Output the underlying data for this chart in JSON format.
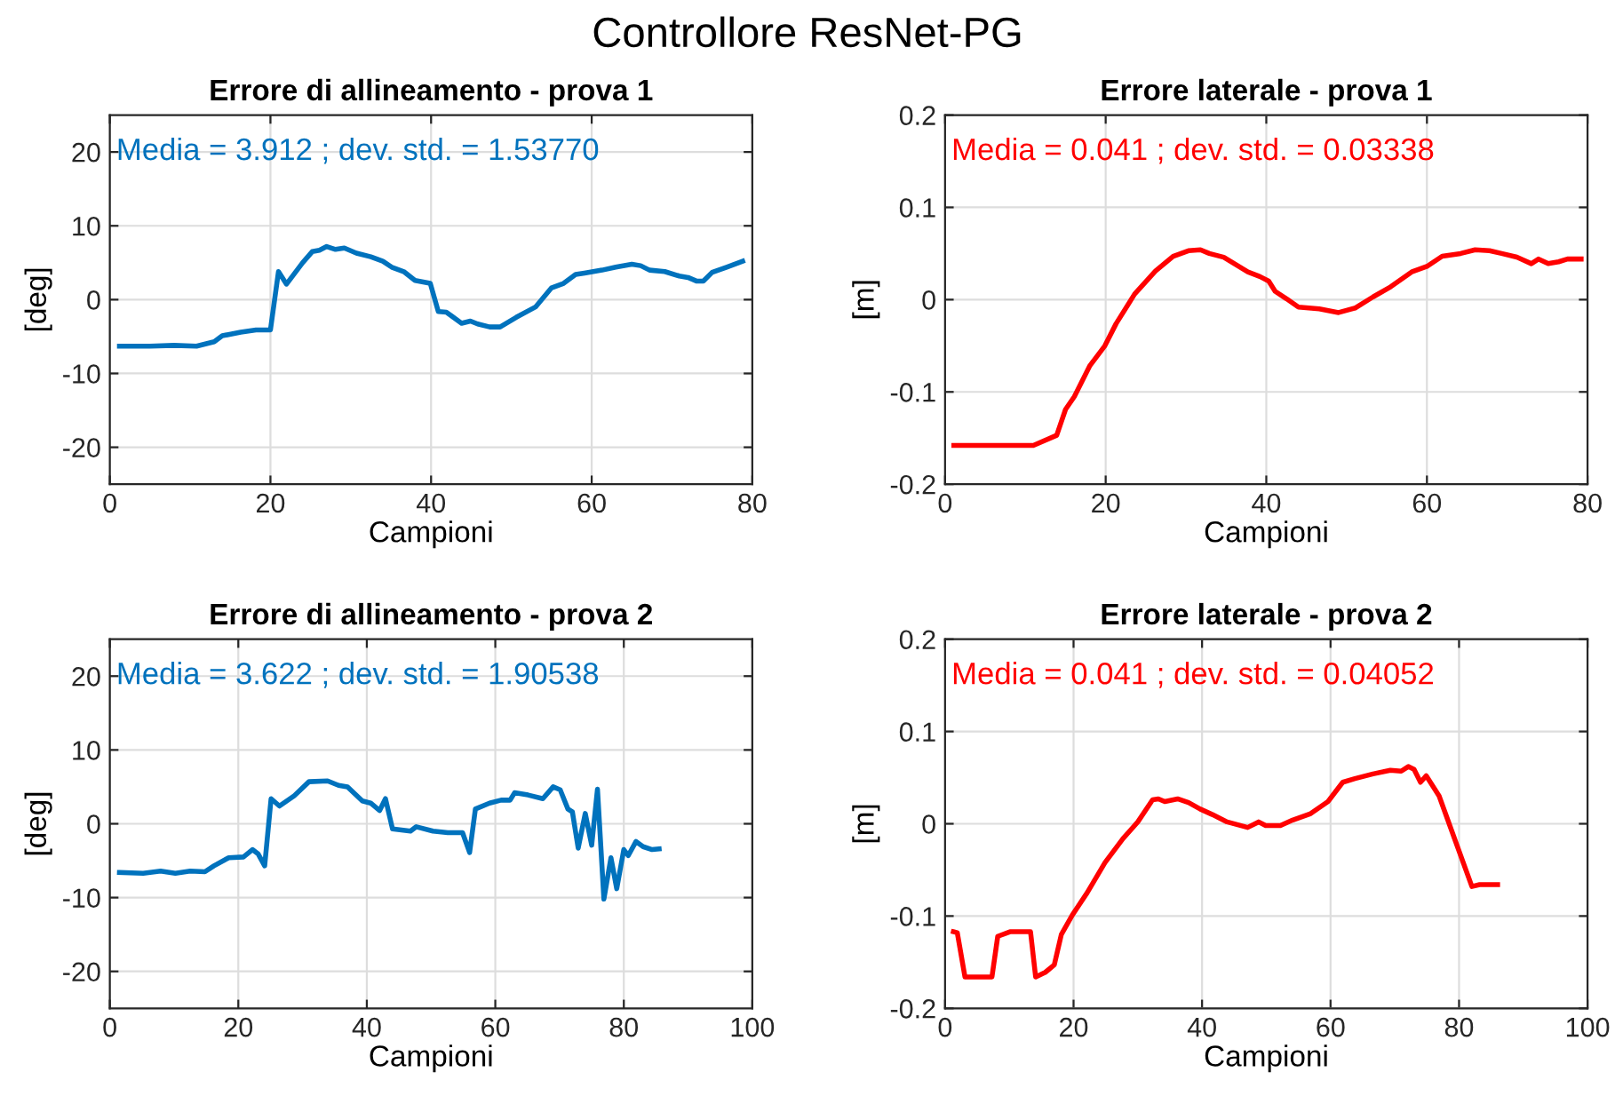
{
  "chart_data": [
    {
      "type": "line",
      "title": "Errore di allineamento - prova 1",
      "xlabel": "Campioni",
      "ylabel": "[deg]",
      "xlim": [
        0,
        80
      ],
      "xticks": [
        0,
        20,
        40,
        60,
        80
      ],
      "ylim": [
        -25,
        25
      ],
      "yticks": [
        -20,
        -10,
        0,
        10,
        20
      ],
      "grid": true,
      "annotations": [
        "Media = 3.912 ; dev. std. = 1.53770",
        "Controllore ResNet-PG"
      ],
      "series": [
        {
          "color": "#0072bd",
          "x": [
            1.2,
            5,
            8,
            10.8,
            13,
            14,
            16.3,
            18.2,
            20,
            21,
            22,
            24,
            25.2,
            26.1,
            27,
            28.1,
            29.2,
            30.7,
            32.5,
            34,
            35.1,
            36.6,
            38,
            39.9,
            40.9,
            41.9,
            43.8,
            44.9,
            45.8,
            47.3,
            48.6,
            50.6,
            53,
            55,
            56.5,
            58,
            59.1,
            61.3,
            63,
            65,
            66.1,
            67.2,
            69.1,
            70.9,
            72,
            73.1,
            73.9,
            75,
            76.8,
            78.8
          ],
          "values": [
            -6.3,
            -6.3,
            -6.2,
            -6.3,
            -5.7,
            -4.9,
            -4.4,
            -4.1,
            -4.1,
            3.8,
            2.1,
            5.0,
            6.5,
            6.7,
            7.2,
            6.8,
            7.0,
            6.3,
            5.8,
            5.2,
            4.4,
            3.8,
            2.6,
            2.2,
            -1.6,
            -1.7,
            -3.2,
            -2.9,
            -3.3,
            -3.7,
            -3.7,
            -2.4,
            -1.0,
            1.6,
            2.2,
            3.4,
            3.6,
            4.0,
            4.4,
            4.8,
            4.6,
            4.0,
            3.8,
            3.2,
            3.0,
            2.5,
            2.5,
            3.7,
            4.4,
            5.2
          ]
        }
      ]
    },
    {
      "type": "line",
      "title": "Errore laterale - prova 1",
      "xlabel": "Campioni",
      "ylabel": "[m]",
      "xlim": [
        0,
        80
      ],
      "xticks": [
        0,
        20,
        40,
        60,
        80
      ],
      "ylim": [
        -0.2,
        0.2
      ],
      "yticks": [
        -0.2,
        -0.1,
        0,
        0.1,
        0.2
      ],
      "grid": true,
      "annotations": [
        "Media = 0.041 ; dev. std. = 0.03338"
      ],
      "series": [
        {
          "color": "#ff0000",
          "x": [
            1.1,
            9.4,
            11,
            13.9,
            15,
            16.1,
            18,
            19.9,
            21.3,
            23.6,
            26.2,
            28.4,
            30.3,
            31.8,
            32.9,
            34.7,
            36.2,
            37.7,
            39.2,
            40.3,
            41.1,
            42.5,
            44,
            46.6,
            49,
            51.1,
            53.3,
            55.5,
            58.1,
            60,
            61.9,
            64.2,
            66,
            67.8,
            69.3,
            71.2,
            73,
            73.9,
            75.1,
            76.4,
            77.5,
            78.2,
            79.2
          ],
          "values": [
            -0.158,
            -0.158,
            -0.158,
            -0.147,
            -0.119,
            -0.105,
            -0.072,
            -0.05,
            -0.026,
            0.006,
            0.031,
            0.047,
            0.053,
            0.054,
            0.05,
            0.046,
            0.038,
            0.03,
            0.025,
            0.02,
            0.009,
            0.001,
            -0.008,
            -0.01,
            -0.014,
            -0.009,
            0.003,
            0.014,
            0.03,
            0.036,
            0.047,
            0.05,
            0.054,
            0.053,
            0.05,
            0.046,
            0.039,
            0.044,
            0.039,
            0.041,
            0.044,
            0.044,
            0.044
          ]
        }
      ]
    },
    {
      "type": "line",
      "title": "Errore di allineamento - prova 2",
      "xlabel": "Campioni",
      "ylabel": "[deg]",
      "xlim": [
        0,
        100
      ],
      "xticks": [
        0,
        20,
        40,
        60,
        80,
        100
      ],
      "ylim": [
        -25,
        25
      ],
      "yticks": [
        -20,
        -10,
        0,
        10,
        20
      ],
      "grid": true,
      "annotations": [
        "Media = 3.622 ; dev. std. = 1.90538"
      ],
      "series": [
        {
          "color": "#0072bd",
          "x": [
            1.5,
            5.2,
            7.9,
            10.2,
            12.5,
            14.8,
            16.2,
            18.5,
            20.8,
            22.2,
            23.1,
            24.1,
            25.1,
            26.4,
            28.7,
            31,
            33.9,
            35.6,
            37,
            39.3,
            40.6,
            42,
            42.9,
            44,
            46.8,
            47.7,
            50.3,
            52.6,
            54.9,
            56,
            56.9,
            59.1,
            60.9,
            62.3,
            63,
            65.1,
            67.4,
            69,
            70.1,
            71.3,
            72,
            72.9,
            74,
            75,
            75.9,
            76.9,
            78,
            78.9,
            80,
            80.7,
            81.9,
            83,
            84.4,
            85.5
          ],
          "values": [
            -6.6,
            -6.7,
            -6.4,
            -6.7,
            -6.4,
            -6.5,
            -5.7,
            -4.6,
            -4.5,
            -3.5,
            -4.1,
            -5.7,
            3.4,
            2.4,
            3.8,
            5.7,
            5.8,
            5.2,
            5.0,
            3.1,
            2.8,
            1.8,
            3.4,
            -0.7,
            -1.0,
            -0.4,
            -1.0,
            -1.2,
            -1.2,
            -3.9,
            2.0,
            2.8,
            3.2,
            3.2,
            4.2,
            3.9,
            3.4,
            5.0,
            4.6,
            2.0,
            1.6,
            -3.3,
            1.4,
            -2.9,
            4.7,
            -10.2,
            -4.6,
            -8.8,
            -3.5,
            -4.3,
            -2.4,
            -3.1,
            -3.5,
            -3.4
          ]
        }
      ]
    },
    {
      "type": "line",
      "title": "Errore laterale - prova 2",
      "xlabel": "Campioni",
      "ylabel": "[m]",
      "xlim": [
        0,
        100
      ],
      "xticks": [
        0,
        20,
        40,
        60,
        80,
        100
      ],
      "ylim": [
        -0.2,
        0.2
      ],
      "yticks": [
        -0.2,
        -0.1,
        0,
        0.1,
        0.2
      ],
      "grid": true,
      "annotations": [
        "Media = 0.041 ; dev. std. = 0.04052"
      ],
      "series": [
        {
          "color": "#ff0000",
          "x": [
            1.3,
            1.9,
            3.1,
            7.3,
            8.2,
            10.1,
            13.3,
            14.1,
            15.6,
            17,
            18.1,
            19.8,
            22.1,
            24.9,
            27.7,
            30,
            32.3,
            33.2,
            34.2,
            36.2,
            37.9,
            39.7,
            41.6,
            43.9,
            47.1,
            48.8,
            49.9,
            52.2,
            54.1,
            56.9,
            59.6,
            61.9,
            63.8,
            66.6,
            69.3,
            71,
            72.1,
            73,
            74,
            74.9,
            76.9,
            79.5,
            82,
            83.2,
            84.6,
            86
          ],
          "values": [
            -0.117,
            -0.118,
            -0.166,
            -0.166,
            -0.122,
            -0.117,
            -0.117,
            -0.166,
            -0.161,
            -0.153,
            -0.12,
            -0.099,
            -0.075,
            -0.042,
            -0.016,
            0.002,
            0.026,
            0.027,
            0.024,
            0.027,
            0.023,
            0.016,
            0.01,
            0.002,
            -0.004,
            0.002,
            -0.002,
            -0.002,
            0.004,
            0.011,
            0.024,
            0.045,
            0.049,
            0.054,
            0.058,
            0.057,
            0.062,
            0.059,
            0.045,
            0.052,
            0.03,
            -0.02,
            -0.068,
            -0.066,
            -0.066,
            -0.066
          ]
        }
      ]
    }
  ]
}
